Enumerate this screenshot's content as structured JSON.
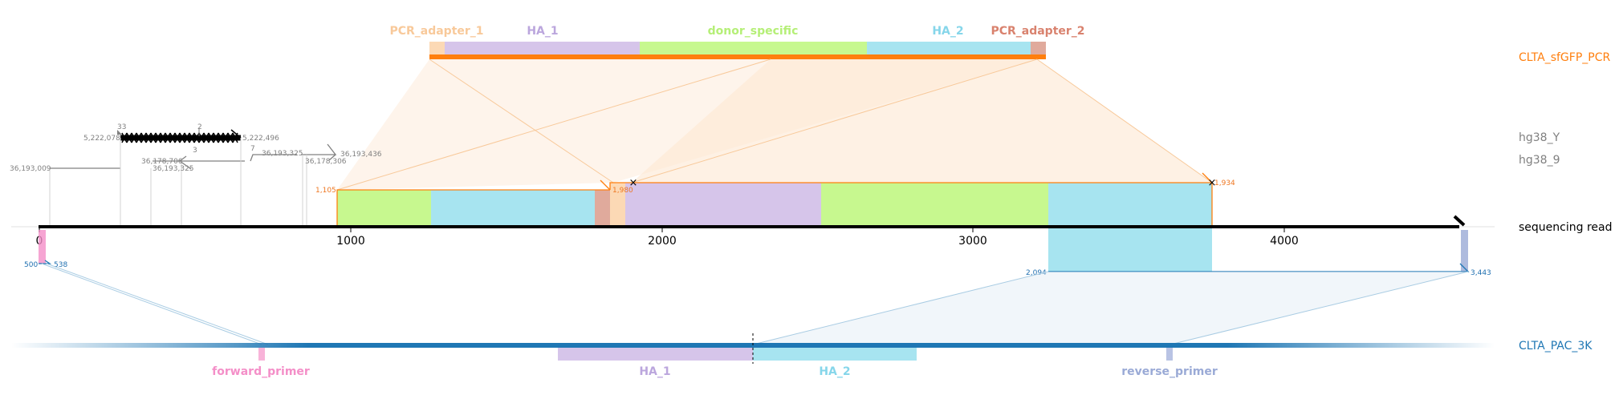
{
  "diagram": {
    "rows": {
      "pcr": "CLTA_sfGFP_PCR",
      "hg38_y": "hg38_Y",
      "hg38_9": "hg38_9",
      "read": "sequencing read",
      "pac": "CLTA_PAC_3K"
    },
    "pcr_features": [
      {
        "name": "PCR_adapter_1",
        "color": "#f8c99a"
      },
      {
        "name": "HA_1",
        "color": "#bba6dd"
      },
      {
        "name": "donor_specific",
        "color": "#b5ef77"
      },
      {
        "name": "HA_2",
        "color": "#86d6ea"
      },
      {
        "name": "PCR_adapter_2",
        "color": "#d9826e"
      }
    ],
    "pac_features": [
      {
        "name": "forward_primer",
        "color": "#f48fc8"
      },
      {
        "name": "HA_1",
        "color": "#bba6dd"
      },
      {
        "name": "HA_2",
        "color": "#86d6ea"
      },
      {
        "name": "reverse_primer",
        "color": "#9aaad6"
      }
    ],
    "axis_ticks": [
      "0",
      "1000",
      "2000",
      "3000",
      "4000"
    ],
    "hg38_y_labels": {
      "left": "5,222,078",
      "right": "5,222,496",
      "top_a": "33",
      "top_b": "2",
      "bottom": "3",
      "side": "7"
    },
    "hg38_9_labels": [
      "36,193,009",
      "36,178,706",
      "36,193,325",
      "36,193,325",
      "36,178,306",
      "36,193,436"
    ],
    "read_coords": {
      "pcr_start": "1,105",
      "pcr_mid": "1,980",
      "pcr_end": "1,934",
      "pac_left_a": "500",
      "pac_left_b": "538",
      "pac_right_a": "2,094",
      "pac_right_b": "3,443"
    },
    "colors": {
      "pcr_line": "#ff7f0e",
      "pac_line": "#1f77b4",
      "genome": "#808080"
    }
  }
}
